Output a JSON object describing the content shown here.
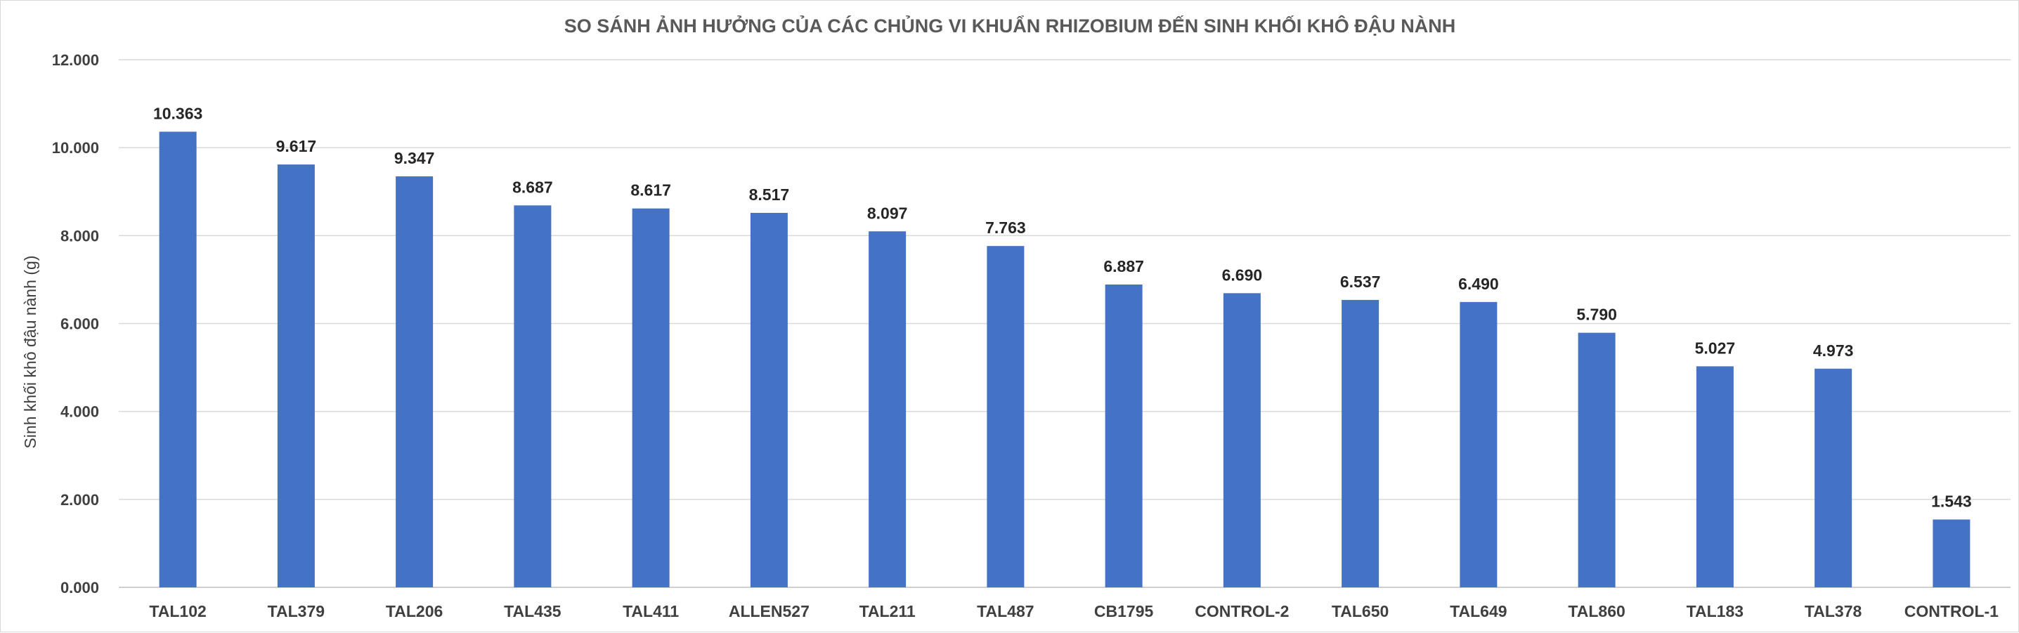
{
  "chart_data": {
    "type": "bar",
    "title": "SO SÁNH ẢNH HƯỞNG CỦA CÁC CHỦNG VI KHUẨN RHIZOBIUM ĐẾN SINH KHỐI KHÔ ĐẬU NÀNH",
    "xlabel": "",
    "ylabel": "Sinh khối khô đậu nành (g)",
    "categories": [
      "TAL102",
      "TAL379",
      "TAL206",
      "TAL435",
      "TAL411",
      "ALLEN527",
      "TAL211",
      "TAL487",
      "CB1795",
      "CONTROL-2",
      "TAL650",
      "TAL649",
      "TAL860",
      "TAL183",
      "TAL378",
      "CONTROL-1"
    ],
    "values": [
      10.363,
      9.617,
      9.347,
      8.687,
      8.617,
      8.517,
      8.097,
      7.763,
      6.887,
      6.69,
      6.537,
      6.49,
      5.79,
      5.027,
      4.973,
      1.543
    ],
    "data_labels": [
      "10.363",
      "9.617",
      "9.347",
      "8.687",
      "8.617",
      "8.517",
      "8.097",
      "7.763",
      "6.887",
      "6.690",
      "6.537",
      "6.490",
      "5.790",
      "5.027",
      "4.973",
      "1.543"
    ],
    "ylim": [
      0,
      12
    ],
    "yticks": [
      0,
      2,
      4,
      6,
      8,
      10,
      12
    ],
    "ytick_labels": [
      "0.000",
      "2.000",
      "4.000",
      "6.000",
      "8.000",
      "10.000",
      "12.000"
    ],
    "grid": true,
    "legend": "none",
    "bar_color": "#4472C4",
    "grid_color": "#D9D9D9"
  }
}
